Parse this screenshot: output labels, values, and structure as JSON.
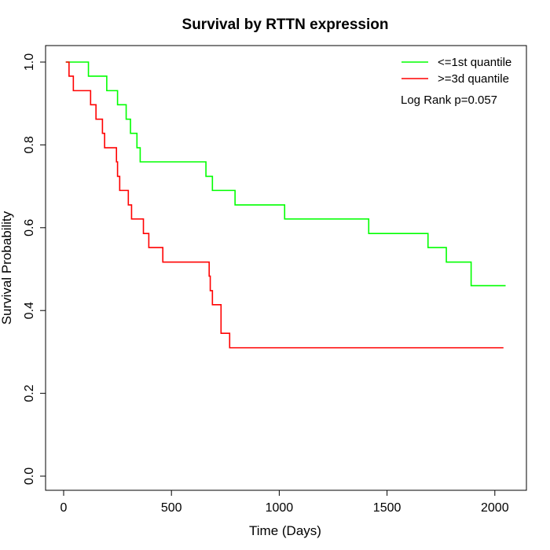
{
  "chart_data": {
    "type": "line",
    "title": "Survival by RTTN expression",
    "xlabel": "Time (Days)",
    "ylabel": "Survival Probability",
    "xlim": [
      0,
      2050
    ],
    "ylim": [
      0,
      1.0
    ],
    "x_ticks": [
      0,
      500,
      1000,
      1500,
      2000
    ],
    "y_ticks": [
      0.0,
      0.2,
      0.4,
      0.6,
      0.8,
      1.0
    ],
    "x_tick_labels": [
      "0",
      "500",
      "1000",
      "1500",
      "2000"
    ],
    "y_tick_labels": [
      "0.0",
      "0.2",
      "0.4",
      "0.6",
      "0.8",
      "1.0"
    ],
    "grid": false,
    "legend_position": "top-right",
    "annotation": "Log Rank p=0.057",
    "series": [
      {
        "name": "<=1st quantile",
        "color": "#00ff00",
        "step": true,
        "x": [
          10,
          115,
          200,
          250,
          290,
          310,
          340,
          355,
          660,
          690,
          795,
          1025,
          1415,
          1690,
          1775,
          1890,
          2050
        ],
        "y": [
          1.0,
          0.966,
          0.931,
          0.897,
          0.862,
          0.828,
          0.793,
          0.759,
          0.724,
          0.69,
          0.655,
          0.621,
          0.586,
          0.552,
          0.517,
          0.46,
          0.46
        ]
      },
      {
        "name": ">=3d quantile",
        "color": "#ff0000",
        "step": true,
        "x": [
          10,
          25,
          45,
          125,
          150,
          180,
          190,
          205,
          245,
          250,
          260,
          275,
          300,
          315,
          370,
          395,
          460,
          675,
          680,
          690,
          700,
          730,
          770,
          2040
        ],
        "y": [
          1.0,
          0.966,
          0.931,
          0.897,
          0.862,
          0.828,
          0.793,
          0.793,
          0.759,
          0.724,
          0.69,
          0.69,
          0.655,
          0.621,
          0.586,
          0.552,
          0.517,
          0.483,
          0.448,
          0.414,
          0.414,
          0.345,
          0.31,
          0.31
        ]
      }
    ]
  }
}
